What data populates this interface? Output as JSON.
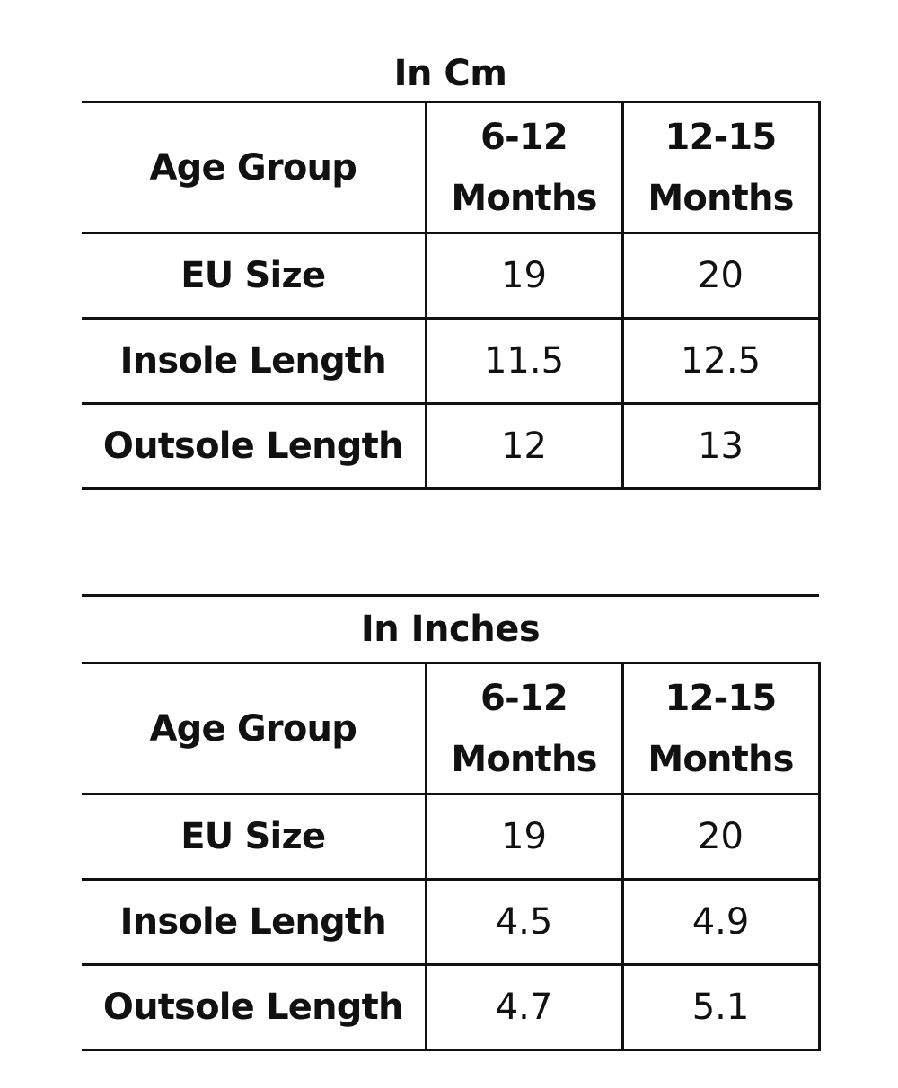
{
  "tables": [
    {
      "title": "In Cm",
      "header": {
        "label": "Age Group",
        "columns": [
          {
            "line1": "6-12",
            "line2": "Months"
          },
          {
            "line1": "12-15",
            "line2": "Months"
          }
        ]
      },
      "rows": [
        {
          "label": "EU Size",
          "values": [
            "19",
            "20"
          ]
        },
        {
          "label": "Insole Length",
          "values": [
            "11.5",
            "12.5"
          ]
        },
        {
          "label": "Outsole Length",
          "values": [
            "12",
            "13"
          ]
        }
      ]
    },
    {
      "title": "In Inches",
      "header": {
        "label": "Age Group",
        "columns": [
          {
            "line1": "6-12",
            "line2": "Months"
          },
          {
            "line1": "12-15",
            "line2": "Months"
          }
        ]
      },
      "rows": [
        {
          "label": "EU Size",
          "values": [
            "19",
            "20"
          ]
        },
        {
          "label": "Insole Length",
          "values": [
            "4.5",
            "4.9"
          ]
        },
        {
          "label": "Outsole Length",
          "values": [
            "4.7",
            "5.1"
          ]
        }
      ]
    }
  ]
}
